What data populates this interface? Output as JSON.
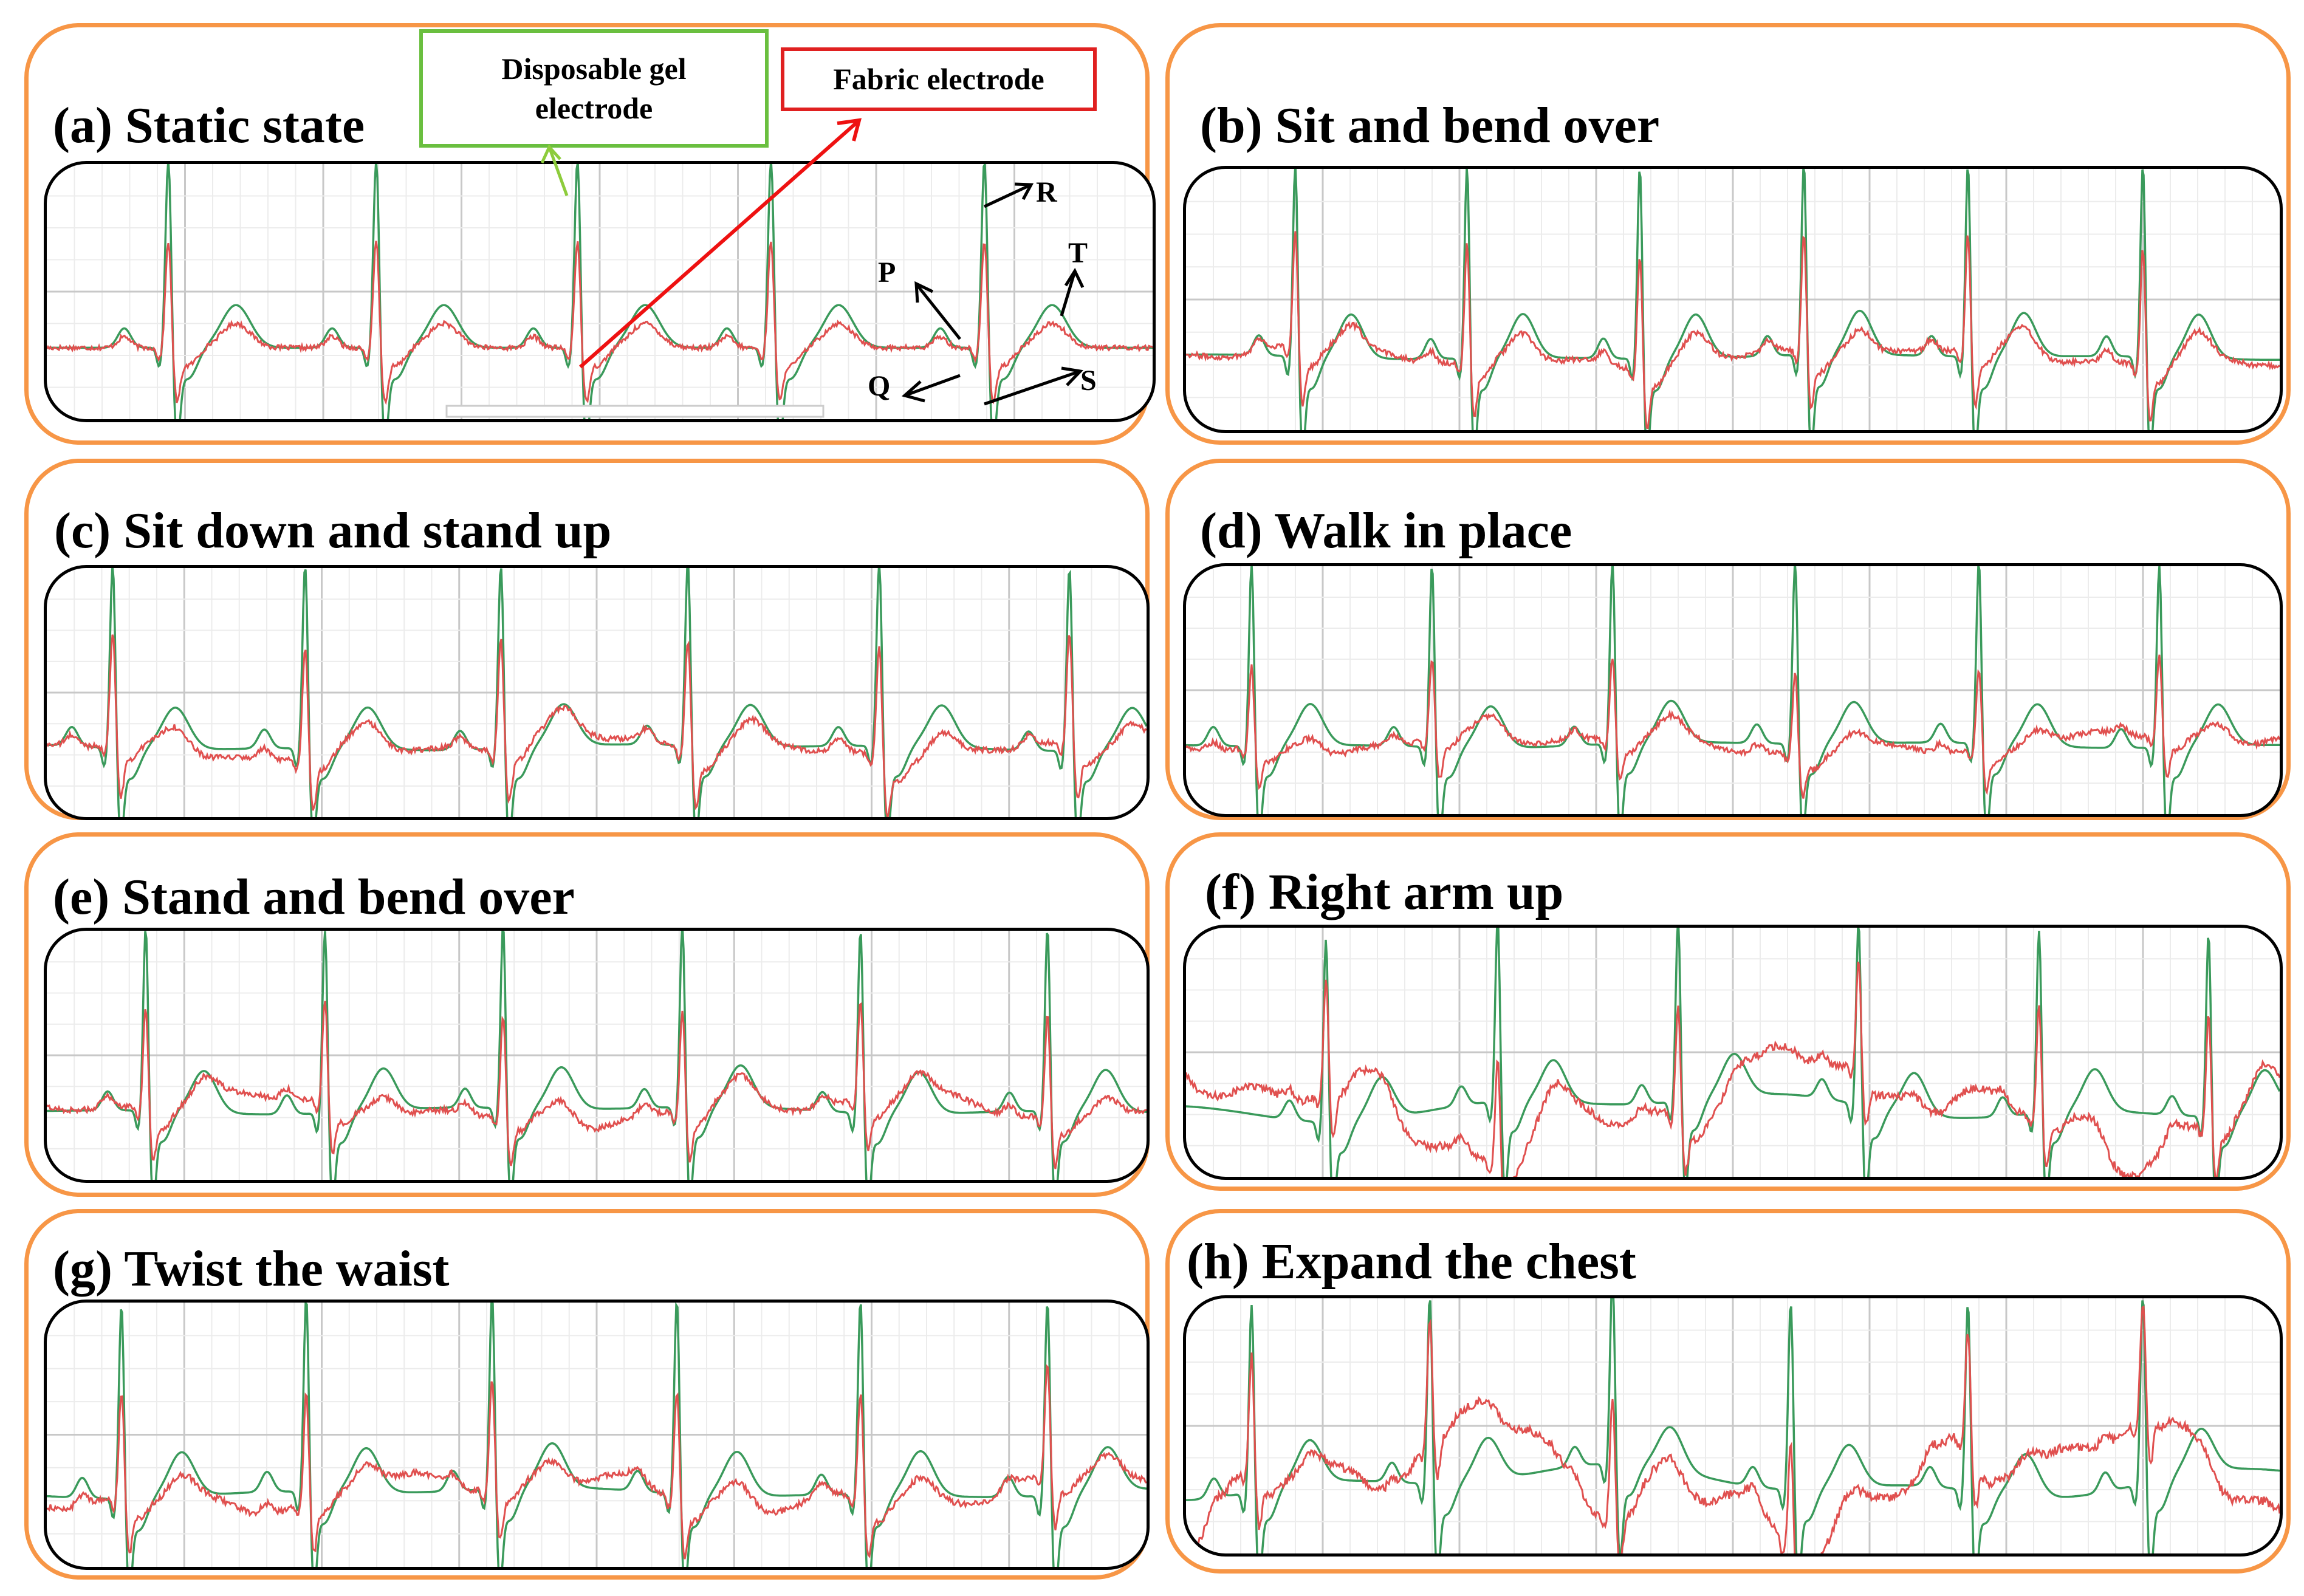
{
  "colors": {
    "panel_border": "#f79646",
    "gel_trace": "#3a9a5b",
    "fabric_trace": "#e0504f",
    "grid": "#d9d9d9",
    "gel_box": "#6abf3f",
    "fabric_box": "#e02020",
    "fabric_arrow": "#ee1111",
    "gel_arrow": "#8dcc3c"
  },
  "legend": {
    "gel_label": "Disposable gel electrode",
    "fabric_label": "Fabric electrode"
  },
  "wave_labels": {
    "P": "P",
    "Q": "Q",
    "R": "R",
    "S": "S",
    "T": "T"
  },
  "chart_data": [
    {
      "type": "line",
      "title": "(a) Static state",
      "series": [
        {
          "name": "Disposable gel electrode"
        },
        {
          "name": "Fabric electrode"
        }
      ],
      "r_peaks_fraction": [
        0.11,
        0.298,
        0.48,
        0.655,
        0.848
      ],
      "fabric_to_gel_r_ratio": 0.57,
      "motion_artifact": 0.0,
      "grid": true
    },
    {
      "type": "line",
      "title": "(b) Sit and bend over",
      "series": [
        {
          "name": "Disposable gel electrode"
        },
        {
          "name": "Fabric electrode"
        }
      ],
      "r_peaks_fraction": [
        0.1,
        0.257,
        0.415,
        0.565,
        0.715,
        0.875
      ],
      "fabric_to_gel_r_ratio": 0.6,
      "motion_artifact": 0.15,
      "grid": true
    },
    {
      "type": "line",
      "title": "(c) Sit down and stand up",
      "series": [
        {
          "name": "Disposable gel electrode"
        },
        {
          "name": "Fabric electrode"
        }
      ],
      "r_peaks_fraction": [
        0.06,
        0.235,
        0.413,
        0.583,
        0.757,
        0.93
      ],
      "fabric_to_gel_r_ratio": 0.6,
      "motion_artifact": 0.2,
      "grid": true
    },
    {
      "type": "line",
      "title": "(d) Walk in place",
      "series": [
        {
          "name": "Disposable gel electrode"
        },
        {
          "name": "Fabric electrode"
        }
      ],
      "r_peaks_fraction": [
        0.06,
        0.225,
        0.39,
        0.557,
        0.725,
        0.89
      ],
      "fabric_to_gel_r_ratio": 0.45,
      "motion_artifact": 0.2,
      "grid": true
    },
    {
      "type": "line",
      "title": "(e) Stand and bend over",
      "series": [
        {
          "name": "Disposable gel electrode"
        },
        {
          "name": "Fabric electrode"
        }
      ],
      "r_peaks_fraction": [
        0.09,
        0.253,
        0.415,
        0.578,
        0.74,
        0.91
      ],
      "fabric_to_gel_r_ratio": 0.55,
      "motion_artifact": 0.25,
      "grid": true
    },
    {
      "type": "line",
      "title": "(f) Right arm up",
      "series": [
        {
          "name": "Disposable gel electrode"
        },
        {
          "name": "Fabric electrode"
        }
      ],
      "r_peaks_fraction": [
        0.128,
        0.285,
        0.45,
        0.615,
        0.78,
        0.935
      ],
      "fabric_to_gel_r_ratio": 0.6,
      "motion_artifact": 0.85,
      "grid": true
    },
    {
      "type": "line",
      "title": "(g) Twist the waist",
      "series": [
        {
          "name": "Disposable gel electrode"
        },
        {
          "name": "Fabric electrode"
        }
      ],
      "r_peaks_fraction": [
        0.068,
        0.236,
        0.405,
        0.573,
        0.74,
        0.91
      ],
      "fabric_to_gel_r_ratio": 0.55,
      "motion_artifact": 0.3,
      "grid": true
    },
    {
      "type": "line",
      "title": "(h) Expand the chest",
      "series": [
        {
          "name": "Disposable gel electrode"
        },
        {
          "name": "Fabric electrode"
        }
      ],
      "r_peaks_fraction": [
        0.06,
        0.223,
        0.39,
        0.553,
        0.715,
        0.875
      ],
      "fabric_to_gel_r_ratio": 0.6,
      "motion_artifact": 1.0,
      "grid": true
    }
  ]
}
